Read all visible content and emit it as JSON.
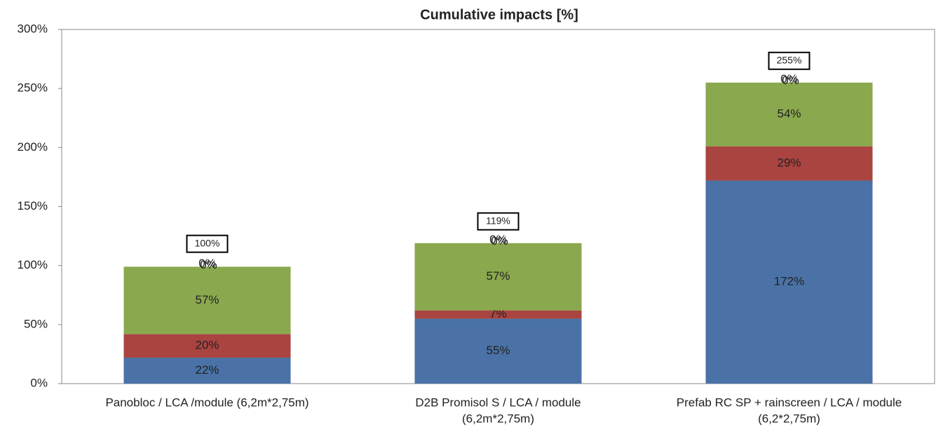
{
  "chart_data": {
    "type": "stacked_bar",
    "title": "Cumulative impacts [%]",
    "categories": [
      [
        "Panobloc / LCA /module (6,2m*2,75m)"
      ],
      [
        "D2B Promisol S / LCA / module",
        "(6,2m*2,75m)"
      ],
      [
        "Prefab RC SP + rainscreen / LCA / module",
        "(6,2*2,75m)"
      ]
    ],
    "series": [
      {
        "color": "#4a72a6",
        "values": [
          22,
          55,
          172
        ],
        "value_labels": [
          "22%",
          "55%",
          "172%"
        ]
      },
      {
        "color": "#a94441",
        "values": [
          20,
          7,
          29
        ],
        "value_labels": [
          "20%",
          "7%",
          "29%"
        ]
      },
      {
        "color": "#8aa84e",
        "values": [
          57,
          57,
          54
        ],
        "value_labels": [
          "57%",
          "57%",
          "54%"
        ]
      },
      {
        "color": "#7b5fa0",
        "values": [
          0,
          0,
          0
        ],
        "value_labels": [
          "0%",
          "0%",
          "0%"
        ]
      },
      {
        "color": "#4aacc6",
        "values": [
          0,
          0,
          0
        ],
        "value_labels": [
          "0%",
          "0%",
          "0%"
        ]
      }
    ],
    "totals": {
      "values": [
        100,
        119,
        255
      ],
      "value_labels": [
        "100%",
        "119%",
        "255%"
      ]
    },
    "ylim": [
      0,
      300
    ],
    "yticks": [
      {
        "value": 0,
        "label": "0%"
      },
      {
        "value": 50,
        "label": "50%"
      },
      {
        "value": 100,
        "label": "100%"
      },
      {
        "value": 150,
        "label": "150%"
      },
      {
        "value": 200,
        "label": "200%"
      },
      {
        "value": 250,
        "label": "250%"
      },
      {
        "value": 300,
        "label": "300%"
      }
    ]
  }
}
